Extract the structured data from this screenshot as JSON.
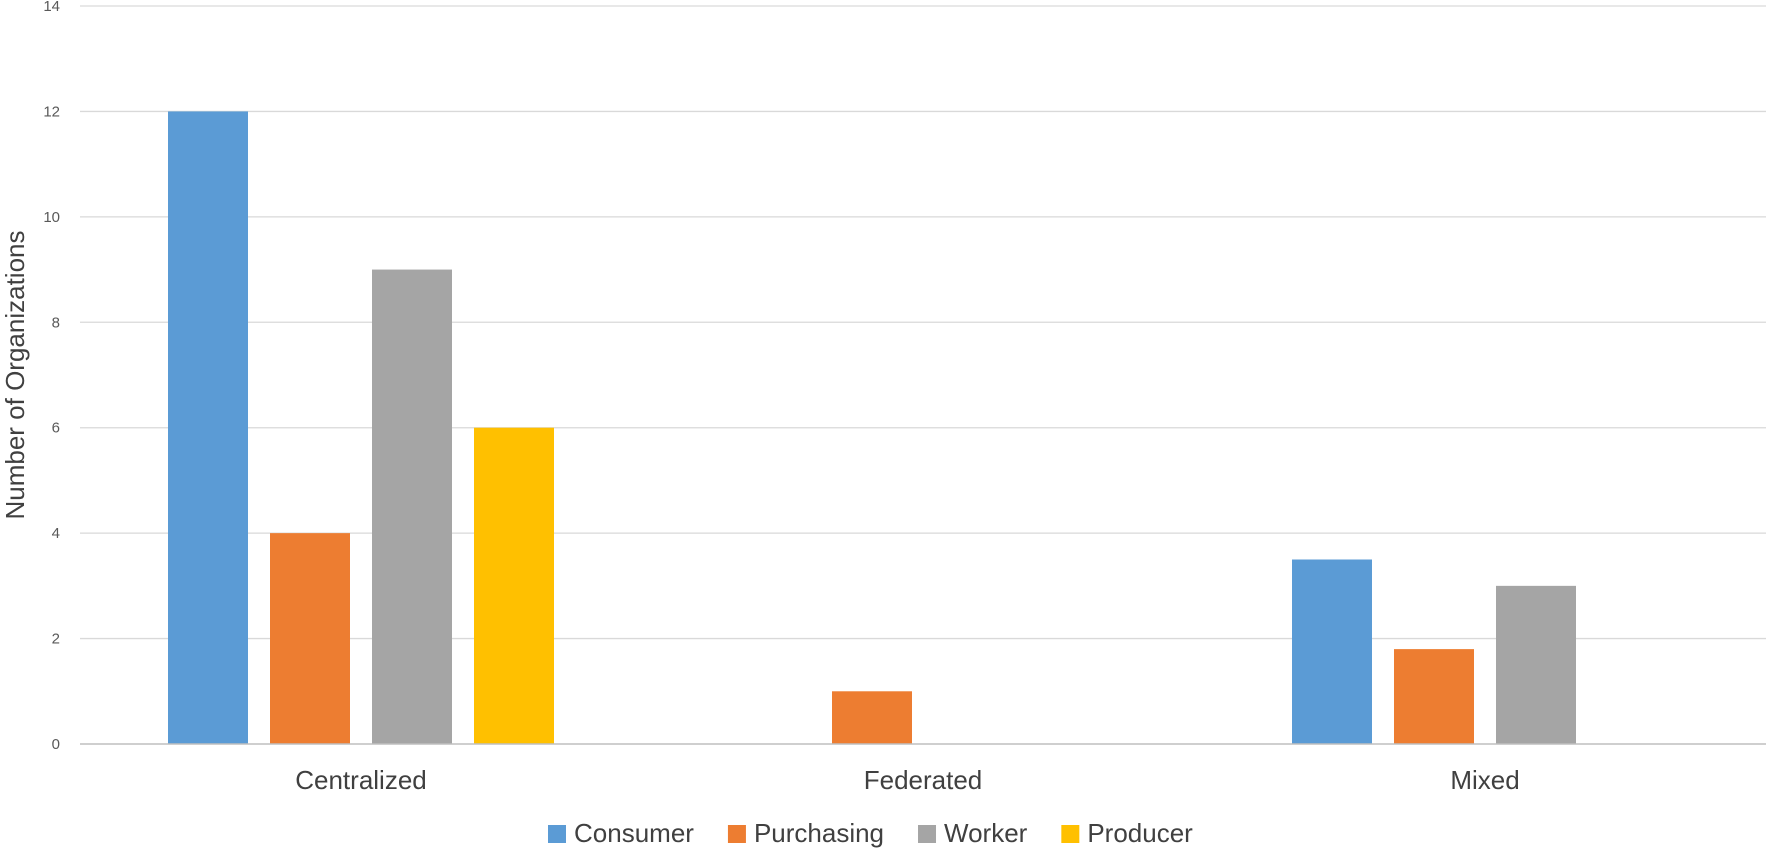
{
  "chart_data": {
    "type": "bar",
    "title": "",
    "xlabel": "",
    "ylabel": "Number of Organizations",
    "ylim": [
      0,
      14
    ],
    "yticks": [
      0,
      2,
      4,
      6,
      8,
      10,
      12,
      14
    ],
    "grid": true,
    "legend": "bottom",
    "categories": [
      "Centralized",
      "Federated",
      "Mixed"
    ],
    "series": [
      {
        "name": "Consumer",
        "color": "#5b9bd5",
        "values": [
          12,
          0,
          3.5
        ]
      },
      {
        "name": "Purchasing",
        "color": "#ed7d31",
        "values": [
          4,
          1,
          1.8
        ]
      },
      {
        "name": "Worker",
        "color": "#a5a5a5",
        "values": [
          9,
          0,
          3
        ]
      },
      {
        "name": "Producer",
        "color": "#ffc000",
        "values": [
          6,
          0,
          0
        ]
      }
    ]
  }
}
